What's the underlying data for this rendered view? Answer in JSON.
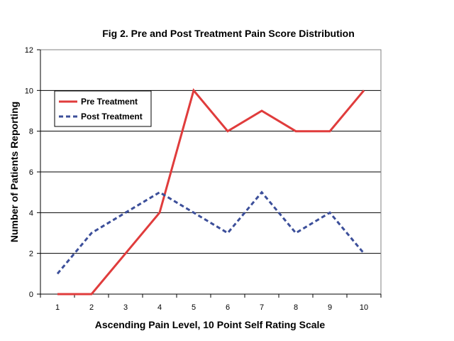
{
  "chart_data": {
    "type": "line",
    "title": "Fig 2. Pre and Post Treatment Pain Score Distribution",
    "xlabel": "Ascending Pain Level, 10 Point Self Rating Scale",
    "ylabel": "Number of Patients Reporting",
    "x": [
      1,
      2,
      3,
      4,
      5,
      6,
      7,
      8,
      9,
      10
    ],
    "xlim": [
      0.5,
      10.5
    ],
    "ylim": [
      0,
      12
    ],
    "yticks": [
      0,
      2,
      4,
      6,
      8,
      10,
      12
    ],
    "grid": "horizontal",
    "legend": "top-left",
    "series": [
      {
        "name": "Pre Treatment",
        "values": [
          0,
          0,
          2,
          4,
          10,
          8,
          9,
          8,
          8,
          10
        ],
        "color": "#e03c3c",
        "style": "solid"
      },
      {
        "name": "Post Treatment",
        "values": [
          1,
          3,
          4,
          5,
          4,
          3,
          5,
          3,
          4,
          2
        ],
        "color": "#3c4f9a",
        "style": "dashed"
      }
    ]
  }
}
